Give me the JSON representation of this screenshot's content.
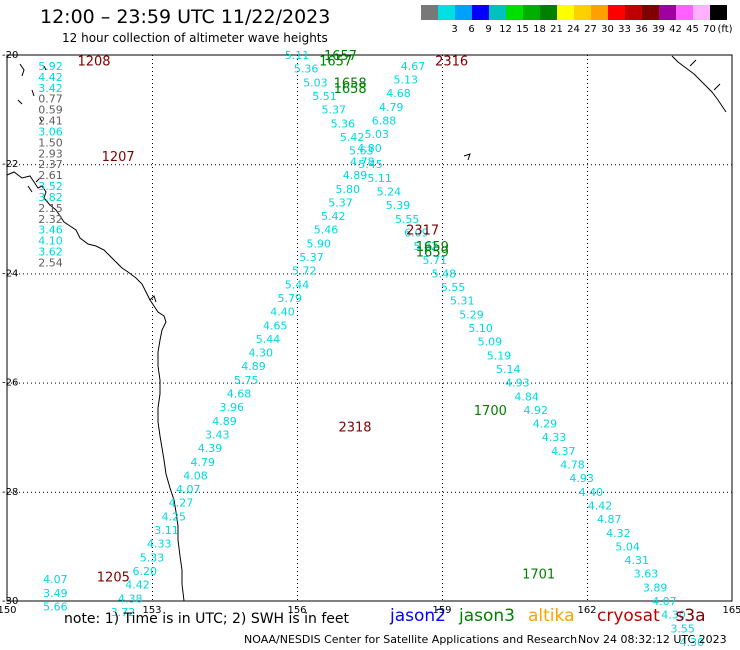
{
  "title": "12:00 – 23:59 UTC 11/22/2023",
  "subtitle": "12 hour collection of altimeter wave heights",
  "legend": {
    "unit": "(ft)",
    "bins": [
      {
        "label": "",
        "color": "#787878"
      },
      {
        "label": "3",
        "color": "#00e0e0"
      },
      {
        "label": "6",
        "color": "#00a0ff"
      },
      {
        "label": "9",
        "color": "#0000ff"
      },
      {
        "label": "12",
        "color": "#00c0c0"
      },
      {
        "label": "15",
        "color": "#00e000"
      },
      {
        "label": "18",
        "color": "#00b000"
      },
      {
        "label": "21",
        "color": "#008000"
      },
      {
        "label": "24",
        "color": "#ffff00"
      },
      {
        "label": "27",
        "color": "#ffd000"
      },
      {
        "label": "30",
        "color": "#ffa000"
      },
      {
        "label": "33",
        "color": "#ff0000"
      },
      {
        "label": "36",
        "color": "#c00000"
      },
      {
        "label": "39",
        "color": "#800000"
      },
      {
        "label": "42",
        "color": "#a000a0"
      },
      {
        "label": "45",
        "color": "#ff60ff"
      },
      {
        "label": "70",
        "color": "#ffb0ff"
      },
      {
        "label": "",
        "color": "#000000"
      }
    ]
  },
  "axes": {
    "lat_labels": [
      "-20",
      "-22",
      "-24",
      "-26",
      "-28",
      "-30"
    ],
    "lon_labels": [
      "150",
      "153",
      "156",
      "159",
      "162",
      "165"
    ]
  },
  "colors": {
    "cyan": "#00d8e0",
    "gray": "#606060",
    "green": "#008000",
    "maroon": "#800000"
  },
  "tracks": [
    {
      "start_lon": 150.9,
      "start_lat": -20.2,
      "step_lat": 0.2,
      "step_lon": 0,
      "values": [
        {
          "v": "5.92",
          "c": "cyan"
        },
        {
          "v": "4.42",
          "c": "cyan"
        },
        {
          "v": "3.42",
          "c": "cyan"
        },
        {
          "v": "0.77",
          "c": "gray"
        },
        {
          "v": "0.59",
          "c": "gray"
        },
        {
          "v": "2.41",
          "c": "gray"
        },
        {
          "v": "3.06",
          "c": "cyan"
        },
        {
          "v": "1.50",
          "c": "gray"
        },
        {
          "v": "2.93",
          "c": "gray"
        },
        {
          "v": "2.37",
          "c": "gray"
        },
        {
          "v": "2.61",
          "c": "gray"
        },
        {
          "v": "3.52",
          "c": "cyan"
        },
        {
          "v": "3.82",
          "c": "cyan"
        },
        {
          "v": "2.15",
          "c": "gray"
        },
        {
          "v": "2.32",
          "c": "gray"
        },
        {
          "v": "3.46",
          "c": "cyan"
        },
        {
          "v": "4.10",
          "c": "cyan"
        },
        {
          "v": "3.62",
          "c": "cyan"
        },
        {
          "v": "2.54",
          "c": "gray"
        }
      ]
    },
    {
      "start_lon": 158.4,
      "start_lat": -20.2,
      "step_lat": 0.25,
      "step_lon": -0.15,
      "values": [
        {
          "v": "4.67",
          "c": "cyan"
        },
        {
          "v": "5.13",
          "c": "cyan"
        },
        {
          "v": "4.68",
          "c": "cyan"
        },
        {
          "v": "4.79",
          "c": "cyan"
        },
        {
          "v": "6.88",
          "c": "cyan"
        },
        {
          "v": "5.03",
          "c": "cyan"
        },
        {
          "v": "4.80",
          "c": "cyan"
        },
        {
          "v": "4.78",
          "c": "cyan"
        },
        {
          "v": "4.89",
          "c": "cyan"
        },
        {
          "v": "5.80",
          "c": "cyan"
        },
        {
          "v": "5.37",
          "c": "cyan"
        },
        {
          "v": "5.42",
          "c": "cyan"
        },
        {
          "v": "5.46",
          "c": "cyan"
        },
        {
          "v": "5.90",
          "c": "cyan"
        },
        {
          "v": "5.37",
          "c": "cyan"
        },
        {
          "v": "5.72",
          "c": "cyan"
        },
        {
          "v": "5.44",
          "c": "cyan"
        },
        {
          "v": "5.79",
          "c": "cyan"
        },
        {
          "v": "4.40",
          "c": "cyan"
        },
        {
          "v": "4.65",
          "c": "cyan"
        },
        {
          "v": "5.44",
          "c": "cyan"
        },
        {
          "v": "4.30",
          "c": "cyan"
        },
        {
          "v": "4.89",
          "c": "cyan"
        },
        {
          "v": "5.75",
          "c": "cyan"
        },
        {
          "v": "4.68",
          "c": "cyan"
        },
        {
          "v": "3.96",
          "c": "cyan"
        },
        {
          "v": "4.89",
          "c": "cyan"
        },
        {
          "v": "3.43",
          "c": "cyan"
        },
        {
          "v": "4.39",
          "c": "cyan"
        },
        {
          "v": "4.79",
          "c": "cyan"
        },
        {
          "v": "4.08",
          "c": "cyan"
        },
        {
          "v": "4.07",
          "c": "cyan"
        },
        {
          "v": "4.27",
          "c": "cyan"
        },
        {
          "v": "4.25",
          "c": "cyan"
        },
        {
          "v": "3.11",
          "c": "cyan"
        },
        {
          "v": "4.33",
          "c": "cyan"
        },
        {
          "v": "5.33",
          "c": "cyan"
        },
        {
          "v": "6.20",
          "c": "cyan"
        },
        {
          "v": "4.42",
          "c": "cyan"
        },
        {
          "v": "4.38",
          "c": "cyan"
        },
        {
          "v": "3.72",
          "c": "cyan"
        }
      ]
    },
    {
      "start_lon": 156.0,
      "start_lat": -20.0,
      "step_lat": 0.25,
      "step_lon": 0.19,
      "values": [
        {
          "v": "5.11",
          "c": "cyan"
        },
        {
          "v": "5.36",
          "c": "cyan"
        },
        {
          "v": "5.03",
          "c": "cyan"
        },
        {
          "v": "5.51",
          "c": "cyan"
        },
        {
          "v": "5.37",
          "c": "cyan"
        },
        {
          "v": "5.36",
          "c": "cyan"
        },
        {
          "v": "5.42",
          "c": "cyan"
        },
        {
          "v": "5.63",
          "c": "cyan"
        },
        {
          "v": "5.45",
          "c": "cyan"
        },
        {
          "v": "5.11",
          "c": "cyan"
        },
        {
          "v": "5.24",
          "c": "cyan"
        },
        {
          "v": "5.39",
          "c": "cyan"
        },
        {
          "v": "5.55",
          "c": "cyan"
        },
        {
          "v": "6.09",
          "c": "cyan"
        },
        {
          "v": "5.82",
          "c": "cyan"
        },
        {
          "v": "5.71",
          "c": "cyan"
        },
        {
          "v": "5.48",
          "c": "cyan"
        },
        {
          "v": "5.55",
          "c": "cyan"
        },
        {
          "v": "5.31",
          "c": "cyan"
        },
        {
          "v": "5.29",
          "c": "cyan"
        },
        {
          "v": "5.10",
          "c": "cyan"
        },
        {
          "v": "5.09",
          "c": "cyan"
        },
        {
          "v": "5.19",
          "c": "cyan"
        },
        {
          "v": "5.14",
          "c": "cyan"
        },
        {
          "v": "4.93",
          "c": "cyan"
        },
        {
          "v": "4.84",
          "c": "cyan"
        },
        {
          "v": "4.92",
          "c": "cyan"
        },
        {
          "v": "4.29",
          "c": "cyan"
        },
        {
          "v": "4.33",
          "c": "cyan"
        },
        {
          "v": "4.37",
          "c": "cyan"
        },
        {
          "v": "4.78",
          "c": "cyan"
        },
        {
          "v": "4.93",
          "c": "cyan"
        },
        {
          "v": "4.40",
          "c": "cyan"
        },
        {
          "v": "4.42",
          "c": "cyan"
        },
        {
          "v": "4.87",
          "c": "cyan"
        },
        {
          "v": "4.32",
          "c": "cyan"
        },
        {
          "v": "5.04",
          "c": "cyan"
        },
        {
          "v": "4.31",
          "c": "cyan"
        },
        {
          "v": "3.63",
          "c": "cyan"
        },
        {
          "v": "3.89",
          "c": "cyan"
        },
        {
          "v": "4.07",
          "c": "cyan"
        },
        {
          "v": "4.30",
          "c": "cyan"
        },
        {
          "v": "3.55",
          "c": "cyan"
        },
        {
          "v": "4.30",
          "c": "cyan"
        },
        {
          "v": "4.50",
          "c": "cyan"
        },
        {
          "v": "4.67",
          "c": "cyan"
        }
      ]
    },
    {
      "start_lon": 151.0,
      "start_lat": -29.6,
      "step_lat": 0.25,
      "step_lon": 0,
      "values": [
        {
          "v": "4.07",
          "c": "cyan"
        },
        {
          "v": "3.49",
          "c": "cyan"
        },
        {
          "v": "5.66",
          "c": "cyan"
        }
      ]
    }
  ],
  "time_labels": [
    {
      "text": "1208",
      "lon": 151.8,
      "lat": -20.1,
      "c": "maroon"
    },
    {
      "text": "1207",
      "lon": 152.3,
      "lat": -21.85,
      "c": "maroon"
    },
    {
      "text": "1657",
      "lon": 156.9,
      "lat": -20.0,
      "c": "green"
    },
    {
      "text": "1657",
      "lon": 156.8,
      "lat": -20.1,
      "c": "green"
    },
    {
      "text": "1658",
      "lon": 157.1,
      "lat": -20.5,
      "c": "green"
    },
    {
      "text": "1658",
      "lon": 157.1,
      "lat": -20.6,
      "c": "green"
    },
    {
      "text": "2316",
      "lon": 159.2,
      "lat": -20.1,
      "c": "maroon"
    },
    {
      "text": "2317",
      "lon": 158.6,
      "lat": -23.2,
      "c": "maroon"
    },
    {
      "text": "1659",
      "lon": 158.8,
      "lat": -23.5,
      "c": "green"
    },
    {
      "text": "1659",
      "lon": 158.8,
      "lat": -23.6,
      "c": "green"
    },
    {
      "text": "1700",
      "lon": 160.0,
      "lat": -26.5,
      "c": "green"
    },
    {
      "text": "2318",
      "lon": 157.2,
      "lat": -26.8,
      "c": "maroon"
    },
    {
      "text": "1205",
      "lon": 152.2,
      "lat": -29.55,
      "c": "maroon"
    },
    {
      "text": "1701",
      "lon": 161.0,
      "lat": -29.5,
      "c": "green"
    }
  ],
  "footer": {
    "note": "note: 1) Time is in UTC; 2) SWH is in feet",
    "satellites": [
      {
        "name": "jason2",
        "color": "#0000ff"
      },
      {
        "name": "jason3",
        "color": "#008000"
      },
      {
        "name": "altika",
        "color": "#ffa000"
      },
      {
        "name": "cryosat",
        "color": "#c00000"
      },
      {
        "name": "s3a",
        "color": "#800000"
      }
    ],
    "credit": "NOAA/NESDIS Center for Satellite Applications and Research",
    "timestamp": "Nov 24 08:32:12 UTC 2023"
  }
}
